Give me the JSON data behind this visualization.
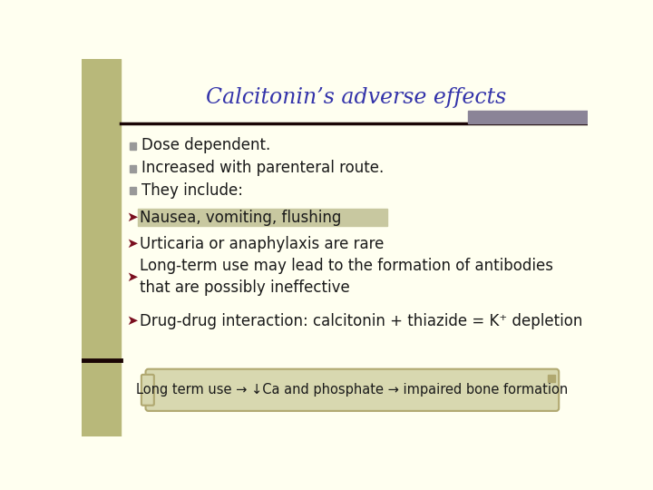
{
  "title": "Calcitonin’s adverse effects",
  "title_color": "#3333aa",
  "title_fontsize": 17,
  "title_font": "italic",
  "bg_color": "#fffff0",
  "left_bar_color": "#b8b87a",
  "header_line_color": "#1a0505",
  "header_bar_color": "#8b8497",
  "bullet_square_color": "#999999",
  "bullet_arrow_color": "#7a0e1e",
  "bullet_items": [
    "Dose dependent.",
    "Increased with parenteral route.",
    "They include:"
  ],
  "arrow_items": [
    {
      "text": "Nausea, vomiting, flushing",
      "highlight": true,
      "highlight_color": "#c8c8a0"
    },
    {
      "text": "Urticaria or anaphylaxis are rare",
      "highlight": false
    },
    {
      "text": "Long-term use may lead to the formation of antibodies\nthat are possibly ineffective",
      "highlight": false
    },
    {
      "text": "Drug-drug interaction: calcitonin + thiazide = K⁺ depletion",
      "highlight": false
    }
  ],
  "footer_text": "Long term use → ↓Ca and phosphate → impaired bone formation",
  "footer_bg": "#d8d8b0",
  "footer_border": "#b0a870",
  "text_color": "#1a1a1a",
  "main_fontsize": 12
}
